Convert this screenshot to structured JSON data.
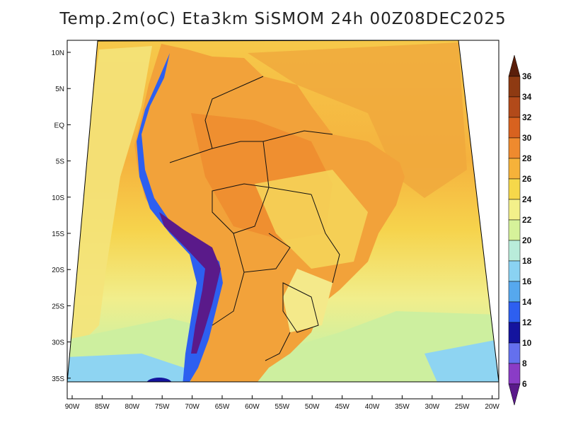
{
  "title": "Temp.2m(oC) Eta3km SiSMOM 24h 00Z08DEC2025",
  "map": {
    "variable": "Temperature at 2 m",
    "units": "oC",
    "lat_labels": [
      "10N",
      "5N",
      "EQ",
      "5S",
      "10S",
      "15S",
      "20S",
      "25S",
      "30S",
      "35S"
    ],
    "lon_labels": [
      "90W",
      "85W",
      "80W",
      "75W",
      "70W",
      "65W",
      "60W",
      "55W",
      "50W",
      "45W",
      "40W",
      "35W",
      "30W",
      "25W",
      "20W"
    ]
  },
  "colorbar": {
    "labels": [
      "36",
      "34",
      "32",
      "30",
      "28",
      "26",
      "24",
      "22",
      "20",
      "18",
      "16",
      "14",
      "12",
      "10",
      "8",
      "6"
    ],
    "colors": [
      "#6e2a0c",
      "#8e3a12",
      "#b24a1a",
      "#d8621f",
      "#ef8a2e",
      "#f6b23a",
      "#f6d84a",
      "#f3f08a",
      "#d6f29a",
      "#b9ecda",
      "#8ad2f2",
      "#56a8ee",
      "#2d5ff0",
      "#14149e",
      "#6470ee",
      "#8a3cc6",
      "#5a1a8a"
    ],
    "top_cap_color": "#5a1e0a",
    "bottom_cap_color": "#5a1a8a"
  }
}
